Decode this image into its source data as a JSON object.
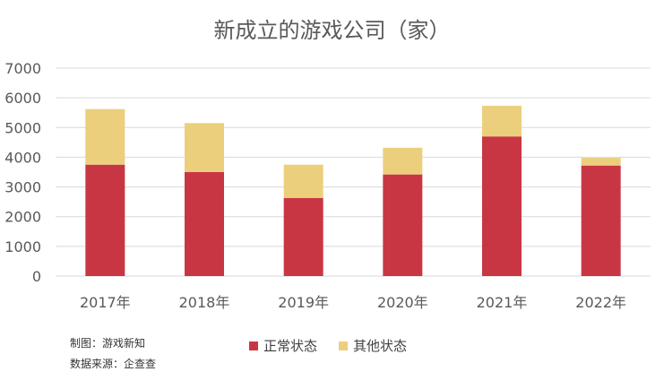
{
  "chart_data": {
    "type": "bar",
    "stacked": true,
    "title": "新成立的游戏公司（家）",
    "categories": [
      "2017年",
      "2018年",
      "2019年",
      "2020年",
      "2021年",
      "2022年"
    ],
    "series": [
      {
        "name": "正常状态",
        "color": "#C93643",
        "values": [
          3750,
          3500,
          2630,
          3420,
          4700,
          3720
        ]
      },
      {
        "name": "其他状态",
        "color": "#EBCF7C",
        "values": [
          1870,
          1650,
          1120,
          900,
          1030,
          260
        ]
      }
    ],
    "ylim": [
      0,
      7000
    ],
    "yticks": [
      "0",
      "1000",
      "2000",
      "3000",
      "4000",
      "5000",
      "6000",
      "7000"
    ],
    "grid": true,
    "legend_position": "bottom"
  },
  "notes": {
    "producer": "制图：游戏新知",
    "source": "数据来源：企查查"
  }
}
